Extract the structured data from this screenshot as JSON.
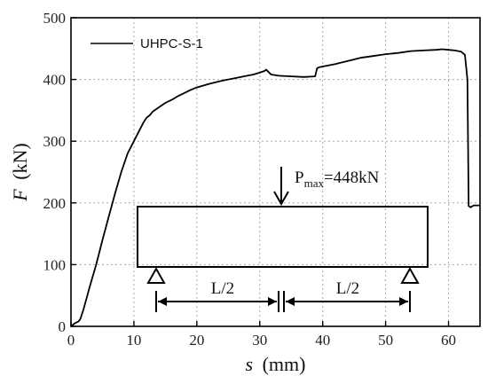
{
  "chart_data": {
    "type": "line",
    "xlabel_var": "s",
    "xlabel_unit": "(mm)",
    "ylabel_var": "F",
    "ylabel_unit": "(kN)",
    "xlim": [
      0,
      65
    ],
    "ylim": [
      0,
      500
    ],
    "xticks": [
      0,
      10,
      20,
      30,
      40,
      50,
      60
    ],
    "yticks": [
      0,
      100,
      200,
      300,
      400,
      500
    ],
    "legend_position": "top-left",
    "series": [
      {
        "name": "UHPC-S-1",
        "color": "#000000",
        "x": [
          0,
          0.6,
          1.2,
          1.5,
          2,
          3,
          4,
          5,
          6,
          7,
          8,
          9,
          10,
          11,
          11.5,
          12,
          12.5,
          13,
          14,
          15,
          16,
          17,
          18,
          19,
          20,
          22,
          24,
          26,
          28,
          29,
          30,
          30.8,
          31,
          31.4,
          31.8,
          33,
          35,
          37,
          38.8,
          39.1,
          39.5,
          40,
          42,
          44,
          46,
          48,
          50,
          52,
          54,
          56,
          58,
          59,
          60,
          61,
          62,
          62.6,
          63,
          63.1,
          63.2,
          63.5,
          64,
          65
        ],
        "y": [
          0,
          5,
          8,
          12,
          28,
          65,
          100,
          140,
          178,
          215,
          250,
          280,
          300,
          320,
          330,
          338,
          342,
          348,
          355,
          362,
          367,
          373,
          378,
          383,
          387,
          393,
          398,
          402,
          406,
          408,
          411,
          414,
          416,
          412,
          408,
          406,
          405,
          404,
          405,
          418,
          420,
          421,
          425,
          430,
          435,
          438,
          441,
          443,
          446,
          447,
          448,
          449,
          448,
          447,
          445,
          440,
          400,
          300,
          195,
          193,
          196,
          196
        ]
      }
    ],
    "annotations": {
      "load_label_base": "P",
      "load_label_sub": "max",
      "load_label_value": "=448kN",
      "span_left": "L/2",
      "span_right": "L/2"
    }
  }
}
